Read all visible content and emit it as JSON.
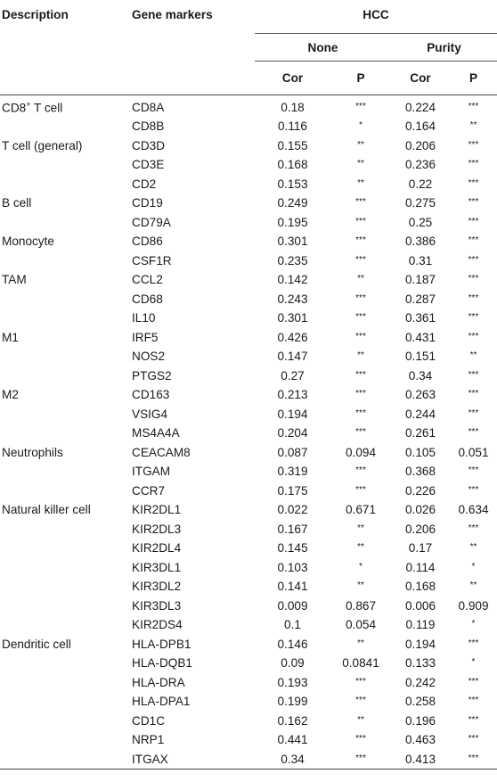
{
  "headers": {
    "description": "Description",
    "gene_markers": "Gene markers",
    "hcc": "HCC",
    "none": "None",
    "purity": "Purity",
    "cor": "Cor",
    "p": "P"
  },
  "rows": [
    {
      "desc": "CD8",
      "desc_sup": "+",
      "desc_tail": " T cell",
      "gene": "CD8A",
      "none_cor": "0.18",
      "none_p": "***",
      "purity_cor": "0.224",
      "purity_p": "***"
    },
    {
      "desc": "",
      "gene": "CD8B",
      "none_cor": "0.116",
      "none_p": "*",
      "purity_cor": "0.164",
      "purity_p": "**"
    },
    {
      "desc": "T cell (general)",
      "gene": "CD3D",
      "none_cor": "0.155",
      "none_p": "**",
      "purity_cor": "0.206",
      "purity_p": "***"
    },
    {
      "desc": "",
      "gene": "CD3E",
      "none_cor": "0.168",
      "none_p": "**",
      "purity_cor": "0.236",
      "purity_p": "***"
    },
    {
      "desc": "",
      "gene": "CD2",
      "none_cor": "0.153",
      "none_p": "**",
      "purity_cor": "0.22",
      "purity_p": "***"
    },
    {
      "desc": "B cell",
      "gene": "CD19",
      "none_cor": "0.249",
      "none_p": "***",
      "purity_cor": "0.275",
      "purity_p": "***"
    },
    {
      "desc": "",
      "gene": "CD79A",
      "none_cor": "0.195",
      "none_p": "***",
      "purity_cor": "0.25",
      "purity_p": "***"
    },
    {
      "desc": "Monocyte",
      "gene": "CD86",
      "none_cor": "0.301",
      "none_p": "***",
      "purity_cor": "0.386",
      "purity_p": "***"
    },
    {
      "desc": "",
      "gene": "CSF1R",
      "none_cor": "0.235",
      "none_p": "***",
      "purity_cor": "0.31",
      "purity_p": "***"
    },
    {
      "desc": "TAM",
      "gene": "CCL2",
      "none_cor": "0.142",
      "none_p": "**",
      "purity_cor": "0.187",
      "purity_p": "***"
    },
    {
      "desc": "",
      "gene": "CD68",
      "none_cor": "0.243",
      "none_p": "***",
      "purity_cor": "0.287",
      "purity_p": "***"
    },
    {
      "desc": "",
      "gene": "IL10",
      "none_cor": "0.301",
      "none_p": "***",
      "purity_cor": "0.361",
      "purity_p": "***"
    },
    {
      "desc": "M1",
      "gene": "IRF5",
      "none_cor": "0.426",
      "none_p": "***",
      "purity_cor": "0.431",
      "purity_p": "***"
    },
    {
      "desc": "",
      "gene": "NOS2",
      "none_cor": "0.147",
      "none_p": "**",
      "purity_cor": "0.151",
      "purity_p": "**"
    },
    {
      "desc": "",
      "gene": "PTGS2",
      "none_cor": "0.27",
      "none_p": "***",
      "purity_cor": "0.34",
      "purity_p": "***"
    },
    {
      "desc": "M2",
      "gene": "CD163",
      "none_cor": "0.213",
      "none_p": "***",
      "purity_cor": "0.263",
      "purity_p": "***"
    },
    {
      "desc": "",
      "gene": "VSIG4",
      "none_cor": "0.194",
      "none_p": "***",
      "purity_cor": "0.244",
      "purity_p": "***"
    },
    {
      "desc": "",
      "gene": "MS4A4A",
      "none_cor": "0.204",
      "none_p": "***",
      "purity_cor": "0.261",
      "purity_p": "***"
    },
    {
      "desc": "Neutrophils",
      "gene": "CEACAM8",
      "none_cor": "0.087",
      "none_p": "0.094",
      "purity_cor": "0.105",
      "purity_p": "0.051"
    },
    {
      "desc": "",
      "gene": "ITGAM",
      "none_cor": "0.319",
      "none_p": "***",
      "purity_cor": "0.368",
      "purity_p": "***"
    },
    {
      "desc": "",
      "gene": "CCR7",
      "none_cor": "0.175",
      "none_p": "***",
      "purity_cor": "0.226",
      "purity_p": "***"
    },
    {
      "desc": "Natural killer cell",
      "gene": "KIR2DL1",
      "none_cor": "0.022",
      "none_p": "0.671",
      "purity_cor": "0.026",
      "purity_p": "0.634"
    },
    {
      "desc": "",
      "gene": "KIR2DL3",
      "none_cor": "0.167",
      "none_p": "**",
      "purity_cor": "0.206",
      "purity_p": "***"
    },
    {
      "desc": "",
      "gene": "KIR2DL4",
      "none_cor": "0.145",
      "none_p": "**",
      "purity_cor": "0.17",
      "purity_p": "**"
    },
    {
      "desc": "",
      "gene": "KIR3DL1",
      "none_cor": "0.103",
      "none_p": "*",
      "purity_cor": "0.114",
      "purity_p": "*"
    },
    {
      "desc": "",
      "gene": "KIR3DL2",
      "none_cor": "0.141",
      "none_p": "**",
      "purity_cor": "0.168",
      "purity_p": "**"
    },
    {
      "desc": "",
      "gene": "KIR3DL3",
      "none_cor": "0.009",
      "none_p": "0.867",
      "purity_cor": "0.006",
      "purity_p": "0.909"
    },
    {
      "desc": "",
      "gene": "KIR2DS4",
      "none_cor": "0.1",
      "none_p": "0.054",
      "purity_cor": "0.119",
      "purity_p": "*"
    },
    {
      "desc": "Dendritic cell",
      "gene": "HLA-DPB1",
      "none_cor": "0.146",
      "none_p": "**",
      "purity_cor": "0.194",
      "purity_p": "***"
    },
    {
      "desc": "",
      "gene": "HLA-DQB1",
      "none_cor": "0.09",
      "none_p": "0.0841",
      "purity_cor": "0.133",
      "purity_p": "*"
    },
    {
      "desc": "",
      "gene": "HLA-DRA",
      "none_cor": "0.193",
      "none_p": "***",
      "purity_cor": "0.242",
      "purity_p": "***"
    },
    {
      "desc": "",
      "gene": "HLA-DPA1",
      "none_cor": "0.199",
      "none_p": "***",
      "purity_cor": "0.258",
      "purity_p": "***"
    },
    {
      "desc": "",
      "gene": "CD1C",
      "none_cor": "0.162",
      "none_p": "**",
      "purity_cor": "0.196",
      "purity_p": "***"
    },
    {
      "desc": "",
      "gene": "NRP1",
      "none_cor": "0.441",
      "none_p": "***",
      "purity_cor": "0.463",
      "purity_p": "***"
    },
    {
      "desc": "",
      "gene": "ITGAX",
      "none_cor": "0.34",
      "none_p": "***",
      "purity_cor": "0.413",
      "purity_p": "***"
    }
  ]
}
